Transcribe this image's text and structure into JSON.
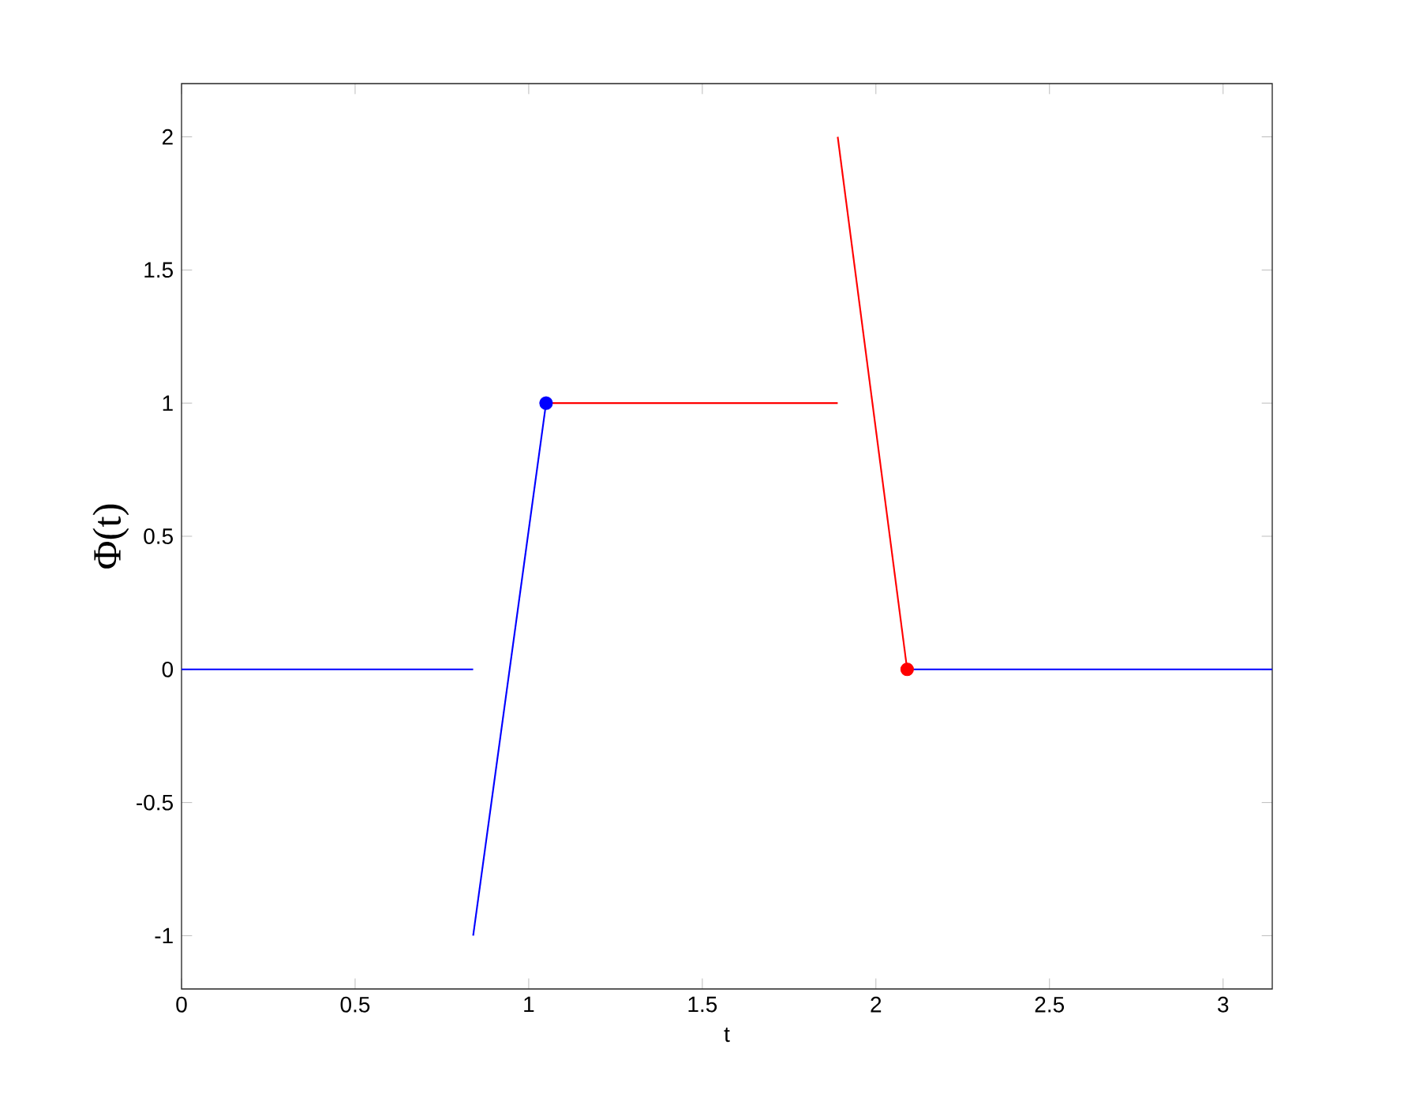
{
  "chart_data": {
    "type": "line",
    "xlabel": "t",
    "ylabel": "Φ(t)",
    "xlim": [
      0,
      3.1416
    ],
    "ylim": [
      -1.2,
      2.2
    ],
    "xticks": [
      0,
      0.5,
      1,
      1.5,
      2,
      2.5,
      3
    ],
    "yticks": [
      -1,
      -0.5,
      0,
      0.5,
      1,
      1.5,
      2
    ],
    "series": [
      {
        "color": "#0000ff",
        "x": [
          0,
          0.84
        ],
        "values": [
          0,
          0
        ],
        "marker": "none"
      },
      {
        "color": "#0000ff",
        "x": [
          0.84,
          1.05
        ],
        "values": [
          -1,
          1
        ],
        "marker": "none"
      },
      {
        "color": "#ff0000",
        "x": [
          1.05,
          1.89
        ],
        "values": [
          1,
          1
        ],
        "marker": "none"
      },
      {
        "color": "#ff0000",
        "x": [
          1.89,
          2.09
        ],
        "values": [
          2,
          0
        ],
        "marker": "none"
      },
      {
        "color": "#0000ff",
        "x": [
          2.09,
          3.1416
        ],
        "values": [
          0,
          0
        ],
        "marker": "none"
      },
      {
        "type": "scatter",
        "color": "#0000ff",
        "x": [
          1.05
        ],
        "values": [
          1
        ],
        "marker": "circle"
      },
      {
        "type": "scatter",
        "color": "#ff0000",
        "x": [
          2.09
        ],
        "values": [
          0
        ],
        "marker": "circle"
      }
    ]
  }
}
